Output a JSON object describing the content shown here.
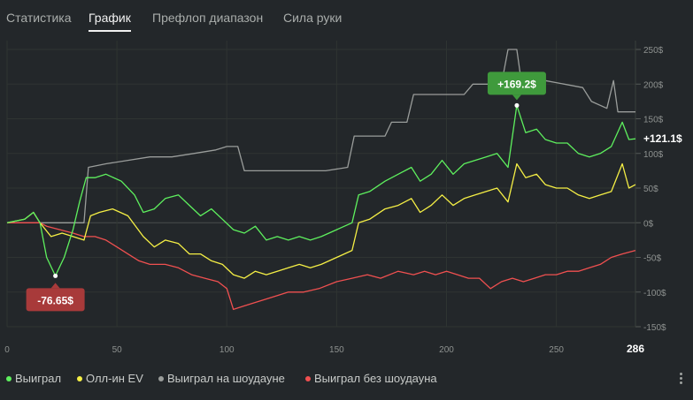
{
  "tabs": [
    {
      "label": "Статистика",
      "active": false
    },
    {
      "label": "График",
      "active": true
    },
    {
      "label": "Префлоп диапазон",
      "active": false
    },
    {
      "label": "Сила руки",
      "active": false
    }
  ],
  "legend": [
    {
      "label": "Выиграл",
      "color": "#5ef05e"
    },
    {
      "label": "Олл-ин EV",
      "color": "#f5ef45"
    },
    {
      "label": "Выиграл на шоудауне",
      "color": "#9a9d9b"
    },
    {
      "label": "Выиграл без шоудауна",
      "color": "#f05050"
    }
  ],
  "annotations": {
    "max_label": "+169.2$",
    "min_label": "-76.65$",
    "last_label": "+121.1$",
    "last_hand": "286"
  },
  "chart_data": {
    "type": "line",
    "xlim": [
      0,
      286
    ],
    "ylim": [
      -150,
      250
    ],
    "x_ticks": [
      "0",
      "50",
      "100",
      "150",
      "200",
      "250"
    ],
    "x_tick_values": [
      0,
      50,
      100,
      150,
      200,
      250
    ],
    "y_ticks": [
      "250$",
      "200$",
      "150$",
      "100$",
      "50$",
      "0$",
      "-50$",
      "-100$",
      "-150$"
    ],
    "y_tick_values": [
      250,
      200,
      150,
      100,
      50,
      0,
      -50,
      -100,
      -150
    ],
    "grid": true,
    "series": [
      {
        "name": "Выиграл",
        "color": "#5ef05e",
        "points": [
          [
            0,
            0
          ],
          [
            8,
            5
          ],
          [
            12,
            15
          ],
          [
            15,
            0
          ],
          [
            18,
            -50
          ],
          [
            22,
            -76.65
          ],
          [
            26,
            -50
          ],
          [
            30,
            -10
          ],
          [
            33,
            30
          ],
          [
            36,
            65
          ],
          [
            40,
            65
          ],
          [
            45,
            70
          ],
          [
            52,
            60
          ],
          [
            58,
            40
          ],
          [
            62,
            15
          ],
          [
            67,
            20
          ],
          [
            72,
            35
          ],
          [
            78,
            40
          ],
          [
            83,
            25
          ],
          [
            88,
            10
          ],
          [
            93,
            20
          ],
          [
            98,
            5
          ],
          [
            103,
            -10
          ],
          [
            108,
            -15
          ],
          [
            113,
            -5
          ],
          [
            118,
            -25
          ],
          [
            123,
            -20
          ],
          [
            128,
            -25
          ],
          [
            133,
            -20
          ],
          [
            138,
            -25
          ],
          [
            143,
            -20
          ],
          [
            150,
            -10
          ],
          [
            157,
            0
          ],
          [
            160,
            40
          ],
          [
            165,
            45
          ],
          [
            172,
            60
          ],
          [
            178,
            70
          ],
          [
            184,
            80
          ],
          [
            188,
            60
          ],
          [
            193,
            70
          ],
          [
            198,
            90
          ],
          [
            203,
            70
          ],
          [
            208,
            85
          ],
          [
            213,
            90
          ],
          [
            218,
            95
          ],
          [
            223,
            100
          ],
          [
            228,
            80
          ],
          [
            232,
            169.2
          ],
          [
            236,
            130
          ],
          [
            241,
            135
          ],
          [
            245,
            120
          ],
          [
            250,
            115
          ],
          [
            255,
            115
          ],
          [
            260,
            100
          ],
          [
            265,
            95
          ],
          [
            270,
            100
          ],
          [
            275,
            110
          ],
          [
            280,
            145
          ],
          [
            283,
            120
          ],
          [
            286,
            121.1
          ]
        ]
      },
      {
        "name": "Олл-ин EV",
        "color": "#f5ef45",
        "points": [
          [
            0,
            0
          ],
          [
            8,
            5
          ],
          [
            12,
            15
          ],
          [
            15,
            0
          ],
          [
            20,
            -20
          ],
          [
            25,
            -15
          ],
          [
            30,
            -20
          ],
          [
            35,
            -25
          ],
          [
            38,
            10
          ],
          [
            42,
            15
          ],
          [
            48,
            20
          ],
          [
            55,
            10
          ],
          [
            62,
            -20
          ],
          [
            67,
            -35
          ],
          [
            72,
            -25
          ],
          [
            78,
            -30
          ],
          [
            83,
            -45
          ],
          [
            88,
            -45
          ],
          [
            93,
            -55
          ],
          [
            98,
            -60
          ],
          [
            103,
            -75
          ],
          [
            108,
            -80
          ],
          [
            113,
            -70
          ],
          [
            118,
            -75
          ],
          [
            123,
            -70
          ],
          [
            128,
            -65
          ],
          [
            133,
            -60
          ],
          [
            138,
            -65
          ],
          [
            143,
            -60
          ],
          [
            150,
            -50
          ],
          [
            157,
            -40
          ],
          [
            160,
            0
          ],
          [
            165,
            5
          ],
          [
            172,
            20
          ],
          [
            178,
            25
          ],
          [
            184,
            35
          ],
          [
            188,
            15
          ],
          [
            193,
            25
          ],
          [
            198,
            40
          ],
          [
            203,
            25
          ],
          [
            208,
            35
          ],
          [
            213,
            40
          ],
          [
            218,
            45
          ],
          [
            223,
            50
          ],
          [
            228,
            30
          ],
          [
            232,
            85
          ],
          [
            236,
            65
          ],
          [
            241,
            70
          ],
          [
            245,
            55
          ],
          [
            250,
            50
          ],
          [
            255,
            50
          ],
          [
            260,
            40
          ],
          [
            265,
            35
          ],
          [
            270,
            40
          ],
          [
            275,
            45
          ],
          [
            280,
            85
          ],
          [
            283,
            50
          ],
          [
            286,
            55
          ]
        ]
      },
      {
        "name": "Выиграл на шоудауне",
        "color": "#9a9d9b",
        "points": [
          [
            0,
            0
          ],
          [
            10,
            0
          ],
          [
            20,
            0
          ],
          [
            30,
            0
          ],
          [
            35,
            0
          ],
          [
            37,
            80
          ],
          [
            45,
            85
          ],
          [
            55,
            90
          ],
          [
            65,
            95
          ],
          [
            75,
            95
          ],
          [
            85,
            100
          ],
          [
            95,
            105
          ],
          [
            100,
            110
          ],
          [
            105,
            110
          ],
          [
            108,
            75
          ],
          [
            115,
            75
          ],
          [
            125,
            75
          ],
          [
            135,
            75
          ],
          [
            145,
            75
          ],
          [
            155,
            80
          ],
          [
            158,
            125
          ],
          [
            165,
            125
          ],
          [
            172,
            125
          ],
          [
            175,
            145
          ],
          [
            182,
            145
          ],
          [
            185,
            185
          ],
          [
            195,
            185
          ],
          [
            208,
            185
          ],
          [
            212,
            200
          ],
          [
            225,
            200
          ],
          [
            228,
            250
          ],
          [
            232,
            250
          ],
          [
            234,
            205
          ],
          [
            245,
            205
          ],
          [
            262,
            195
          ],
          [
            266,
            175
          ],
          [
            273,
            165
          ],
          [
            276,
            205
          ],
          [
            278,
            160
          ],
          [
            286,
            160
          ]
        ]
      },
      {
        "name": "Выиграл без шоудауна",
        "color": "#f05050",
        "points": [
          [
            0,
            0
          ],
          [
            10,
            0
          ],
          [
            15,
            0
          ],
          [
            18,
            -5
          ],
          [
            24,
            -10
          ],
          [
            30,
            -15
          ],
          [
            35,
            -20
          ],
          [
            40,
            -20
          ],
          [
            45,
            -25
          ],
          [
            50,
            -35
          ],
          [
            55,
            -45
          ],
          [
            60,
            -55
          ],
          [
            65,
            -60
          ],
          [
            72,
            -60
          ],
          [
            78,
            -65
          ],
          [
            84,
            -75
          ],
          [
            90,
            -80
          ],
          [
            96,
            -85
          ],
          [
            100,
            -95
          ],
          [
            103,
            -125
          ],
          [
            108,
            -120
          ],
          [
            113,
            -115
          ],
          [
            118,
            -110
          ],
          [
            123,
            -105
          ],
          [
            128,
            -100
          ],
          [
            135,
            -100
          ],
          [
            142,
            -95
          ],
          [
            150,
            -85
          ],
          [
            157,
            -80
          ],
          [
            164,
            -75
          ],
          [
            170,
            -80
          ],
          [
            178,
            -70
          ],
          [
            185,
            -75
          ],
          [
            190,
            -70
          ],
          [
            195,
            -75
          ],
          [
            200,
            -70
          ],
          [
            205,
            -75
          ],
          [
            210,
            -80
          ],
          [
            215,
            -80
          ],
          [
            220,
            -95
          ],
          [
            225,
            -85
          ],
          [
            230,
            -80
          ],
          [
            235,
            -85
          ],
          [
            240,
            -80
          ],
          [
            245,
            -75
          ],
          [
            250,
            -75
          ],
          [
            255,
            -70
          ],
          [
            260,
            -70
          ],
          [
            265,
            -65
          ],
          [
            270,
            -60
          ],
          [
            275,
            -50
          ],
          [
            280,
            -45
          ],
          [
            286,
            -40
          ]
        ]
      }
    ]
  }
}
